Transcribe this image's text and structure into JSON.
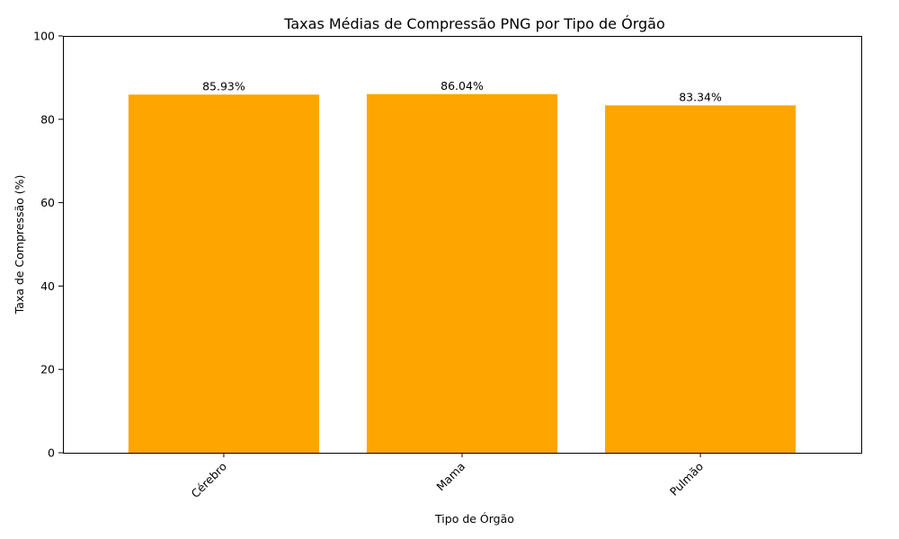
{
  "chart_data": {
    "type": "bar",
    "title": "Taxas Médias de Compressão PNG por Tipo de Órgão",
    "xlabel": "Tipo de Órgão",
    "ylabel": "Taxa de Compressão (%)",
    "categories": [
      "Cérebro",
      "Mama",
      "Pulmão"
    ],
    "values": [
      85.93,
      86.04,
      83.34
    ],
    "data_labels": [
      "85.93%",
      "86.04%",
      "83.34%"
    ],
    "ylim": [
      0,
      100
    ],
    "yticks": [
      0,
      20,
      40,
      60,
      80,
      100
    ],
    "ytick_labels": [
      "0",
      "20",
      "40",
      "60",
      "80",
      "100"
    ],
    "xtick_rotation_deg": 45,
    "bar_color": "#FFA500",
    "grid": false,
    "legend": "none"
  }
}
